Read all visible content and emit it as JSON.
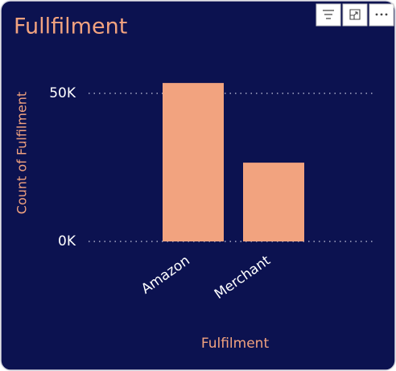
{
  "chart_data": {
    "type": "bar",
    "title": "Fullfilment",
    "categories": [
      "Amazon",
      "Merchant"
    ],
    "values": [
      53500,
      26600
    ],
    "color": "#f2a37f",
    "xlabel": "Fulfilment",
    "ylabel": "Count of Fulfilment",
    "ylim": [
      0,
      55000
    ],
    "yticks": [
      {
        "value": 0,
        "label": "0K"
      },
      {
        "value": 50000,
        "label": "50K"
      }
    ],
    "grid": true
  }
}
